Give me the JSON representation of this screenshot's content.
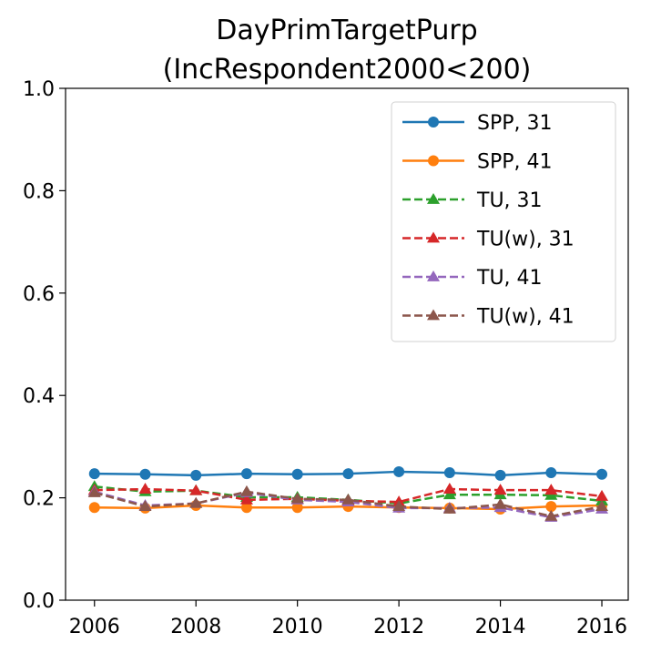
{
  "chart_data": {
    "type": "line",
    "title": [
      "DayPrimTargetPurp",
      "(IncRespondent2000<200)"
    ],
    "x": [
      2006,
      2007,
      2008,
      2009,
      2010,
      2011,
      2012,
      2013,
      2014,
      2015,
      2016
    ],
    "xlim": [
      2005.43,
      2016.52
    ],
    "xticks": [
      2006,
      2008,
      2010,
      2012,
      2014,
      2016
    ],
    "ylim": [
      0,
      1
    ],
    "yticks": [
      {
        "value": 0,
        "label": "0.0"
      },
      0.2,
      0.4,
      0.6,
      0.8,
      {
        "value": 1,
        "label": "1.0"
      }
    ],
    "grid": false,
    "legend": "upper right",
    "series": [
      {
        "name": "SPP, 31",
        "color": "#1f77b4",
        "marker": "circle",
        "linestyle": "solid",
        "values": [
          0.247,
          0.246,
          0.244,
          0.247,
          0.246,
          0.247,
          0.251,
          0.249,
          0.244,
          0.249,
          0.246
        ]
      },
      {
        "name": "SPP, 41",
        "color": "#ff7f0e",
        "marker": "circle",
        "linestyle": "solid",
        "values": [
          0.181,
          0.18,
          0.185,
          0.181,
          0.181,
          0.183,
          0.181,
          0.18,
          0.178,
          0.183,
          0.185
        ]
      },
      {
        "name": "TU, 31",
        "color": "#2ca02c",
        "marker": "triangle",
        "linestyle": "dashed",
        "values": [
          0.222,
          0.212,
          0.214,
          0.201,
          0.201,
          0.196,
          0.189,
          0.206,
          0.206,
          0.205,
          0.194
        ]
      },
      {
        "name": "TU(w), 31",
        "color": "#d62728",
        "marker": "triangle",
        "linestyle": "dashed",
        "values": [
          0.215,
          0.217,
          0.214,
          0.196,
          0.198,
          0.194,
          0.192,
          0.217,
          0.215,
          0.215,
          0.203
        ]
      },
      {
        "name": "TU, 41",
        "color": "#9467bd",
        "marker": "triangle",
        "linestyle": "dashed",
        "values": [
          0.212,
          0.185,
          0.189,
          0.21,
          0.196,
          0.192,
          0.18,
          0.18,
          0.181,
          0.162,
          0.178
        ]
      },
      {
        "name": "TU(w), 41",
        "color": "#8c564b",
        "marker": "triangle",
        "linestyle": "dashed",
        "values": [
          0.21,
          0.183,
          0.189,
          0.212,
          0.198,
          0.196,
          0.183,
          0.178,
          0.187,
          0.164,
          0.183
        ]
      }
    ]
  }
}
